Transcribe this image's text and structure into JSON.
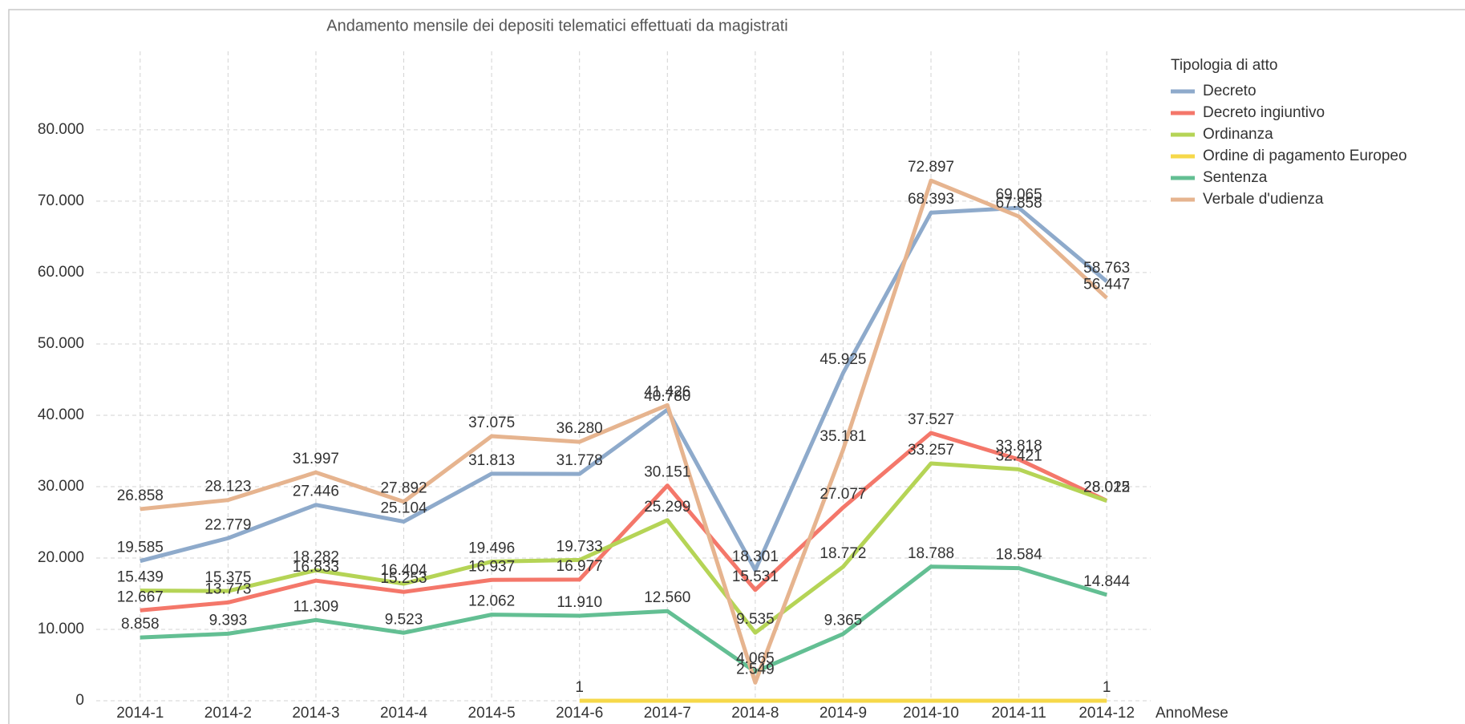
{
  "chart_data": {
    "type": "line",
    "title": "Andamento mensile dei depositi telematici effettuati da magistrati",
    "x_label": "AnnoMese",
    "legend_title": "Tipologia di atto",
    "legend_position": "right",
    "grid": true,
    "categories": [
      "2014-1",
      "2014-2",
      "2014-3",
      "2014-4",
      "2014-5",
      "2014-6",
      "2014-7",
      "2014-8",
      "2014-9",
      "2014-10",
      "2014-11",
      "2014-12"
    ],
    "ylim": [
      0,
      91000
    ],
    "yticks": [
      0,
      {
        "value": 10000,
        "label": "10.000"
      },
      {
        "value": 20000,
        "label": "20.000"
      },
      {
        "value": 30000,
        "label": "30.000"
      },
      {
        "value": 40000,
        "label": "40.000"
      },
      {
        "value": 50000,
        "label": "50.000"
      },
      {
        "value": 60000,
        "label": "60.000"
      },
      {
        "value": 70000,
        "label": "70.000"
      },
      {
        "value": 80000,
        "label": "80.000"
      }
    ],
    "series": [
      {
        "name": "Decreto",
        "color": "#8eaacb",
        "values": [
          19585,
          22779,
          27446,
          25104,
          31813,
          31778,
          40780,
          18301,
          45925,
          68393,
          69065,
          58763
        ],
        "value_labels": [
          "19.585",
          "22.779",
          "27.446",
          "25.104",
          "31.813",
          "31.778",
          "40.780",
          "18.301",
          "45.925",
          "68.393",
          "69.065",
          "58.763"
        ]
      },
      {
        "name": "Decreto ingiuntivo",
        "color": "#f4776a",
        "values": [
          12667,
          13773,
          16833,
          15253,
          16937,
          16977,
          30151,
          15531,
          27077,
          37527,
          33818,
          28025
        ],
        "value_labels": [
          "12.667",
          "13.773",
          "16.833",
          "15.253",
          "16.937",
          "16.977",
          "30.151",
          "15.531",
          "27.077",
          "37.527",
          "33.818",
          "28.025"
        ]
      },
      {
        "name": "Ordinanza",
        "color": "#b5d456",
        "values": [
          15439,
          15375,
          18282,
          16404,
          19496,
          19733,
          25299,
          9535,
          18772,
          33257,
          32421,
          28012
        ],
        "value_labels": [
          "15.439",
          "15.375",
          "18.282",
          "16.404",
          "19.496",
          "19.733",
          "25.299",
          "9.535",
          "18.772",
          "33.257",
          "32.421",
          "28.012"
        ]
      },
      {
        "name": "Ordine di pagamento Europeo",
        "color": "#f6d84a",
        "values": [
          null,
          null,
          null,
          null,
          null,
          1,
          1,
          1,
          1,
          1,
          1,
          1
        ],
        "value_labels": [
          null,
          null,
          null,
          null,
          null,
          "1",
          null,
          null,
          null,
          null,
          null,
          "1"
        ]
      },
      {
        "name": "Sentenza",
        "color": "#63bf93",
        "values": [
          8858,
          9393,
          11309,
          9523,
          12062,
          11910,
          12560,
          4065,
          9365,
          18788,
          18584,
          14844
        ],
        "value_labels": [
          "8.858",
          "9.393",
          "11.309",
          "9.523",
          "12.062",
          "11.910",
          "12.560",
          "4.065",
          "9.365",
          "18.788",
          "18.584",
          "14.844"
        ]
      },
      {
        "name": "Verbale d'udienza",
        "color": "#e6b48f",
        "values": [
          26858,
          28123,
          31997,
          27892,
          37075,
          36280,
          41426,
          2549,
          35181,
          72897,
          67858,
          56447
        ],
        "value_labels": [
          "26.858",
          "28.123",
          "31.997",
          "27.892",
          "37.075",
          "36.280",
          "41.426",
          "2.549",
          "35.181",
          "72.897",
          "67.858",
          "56.447"
        ]
      }
    ]
  }
}
